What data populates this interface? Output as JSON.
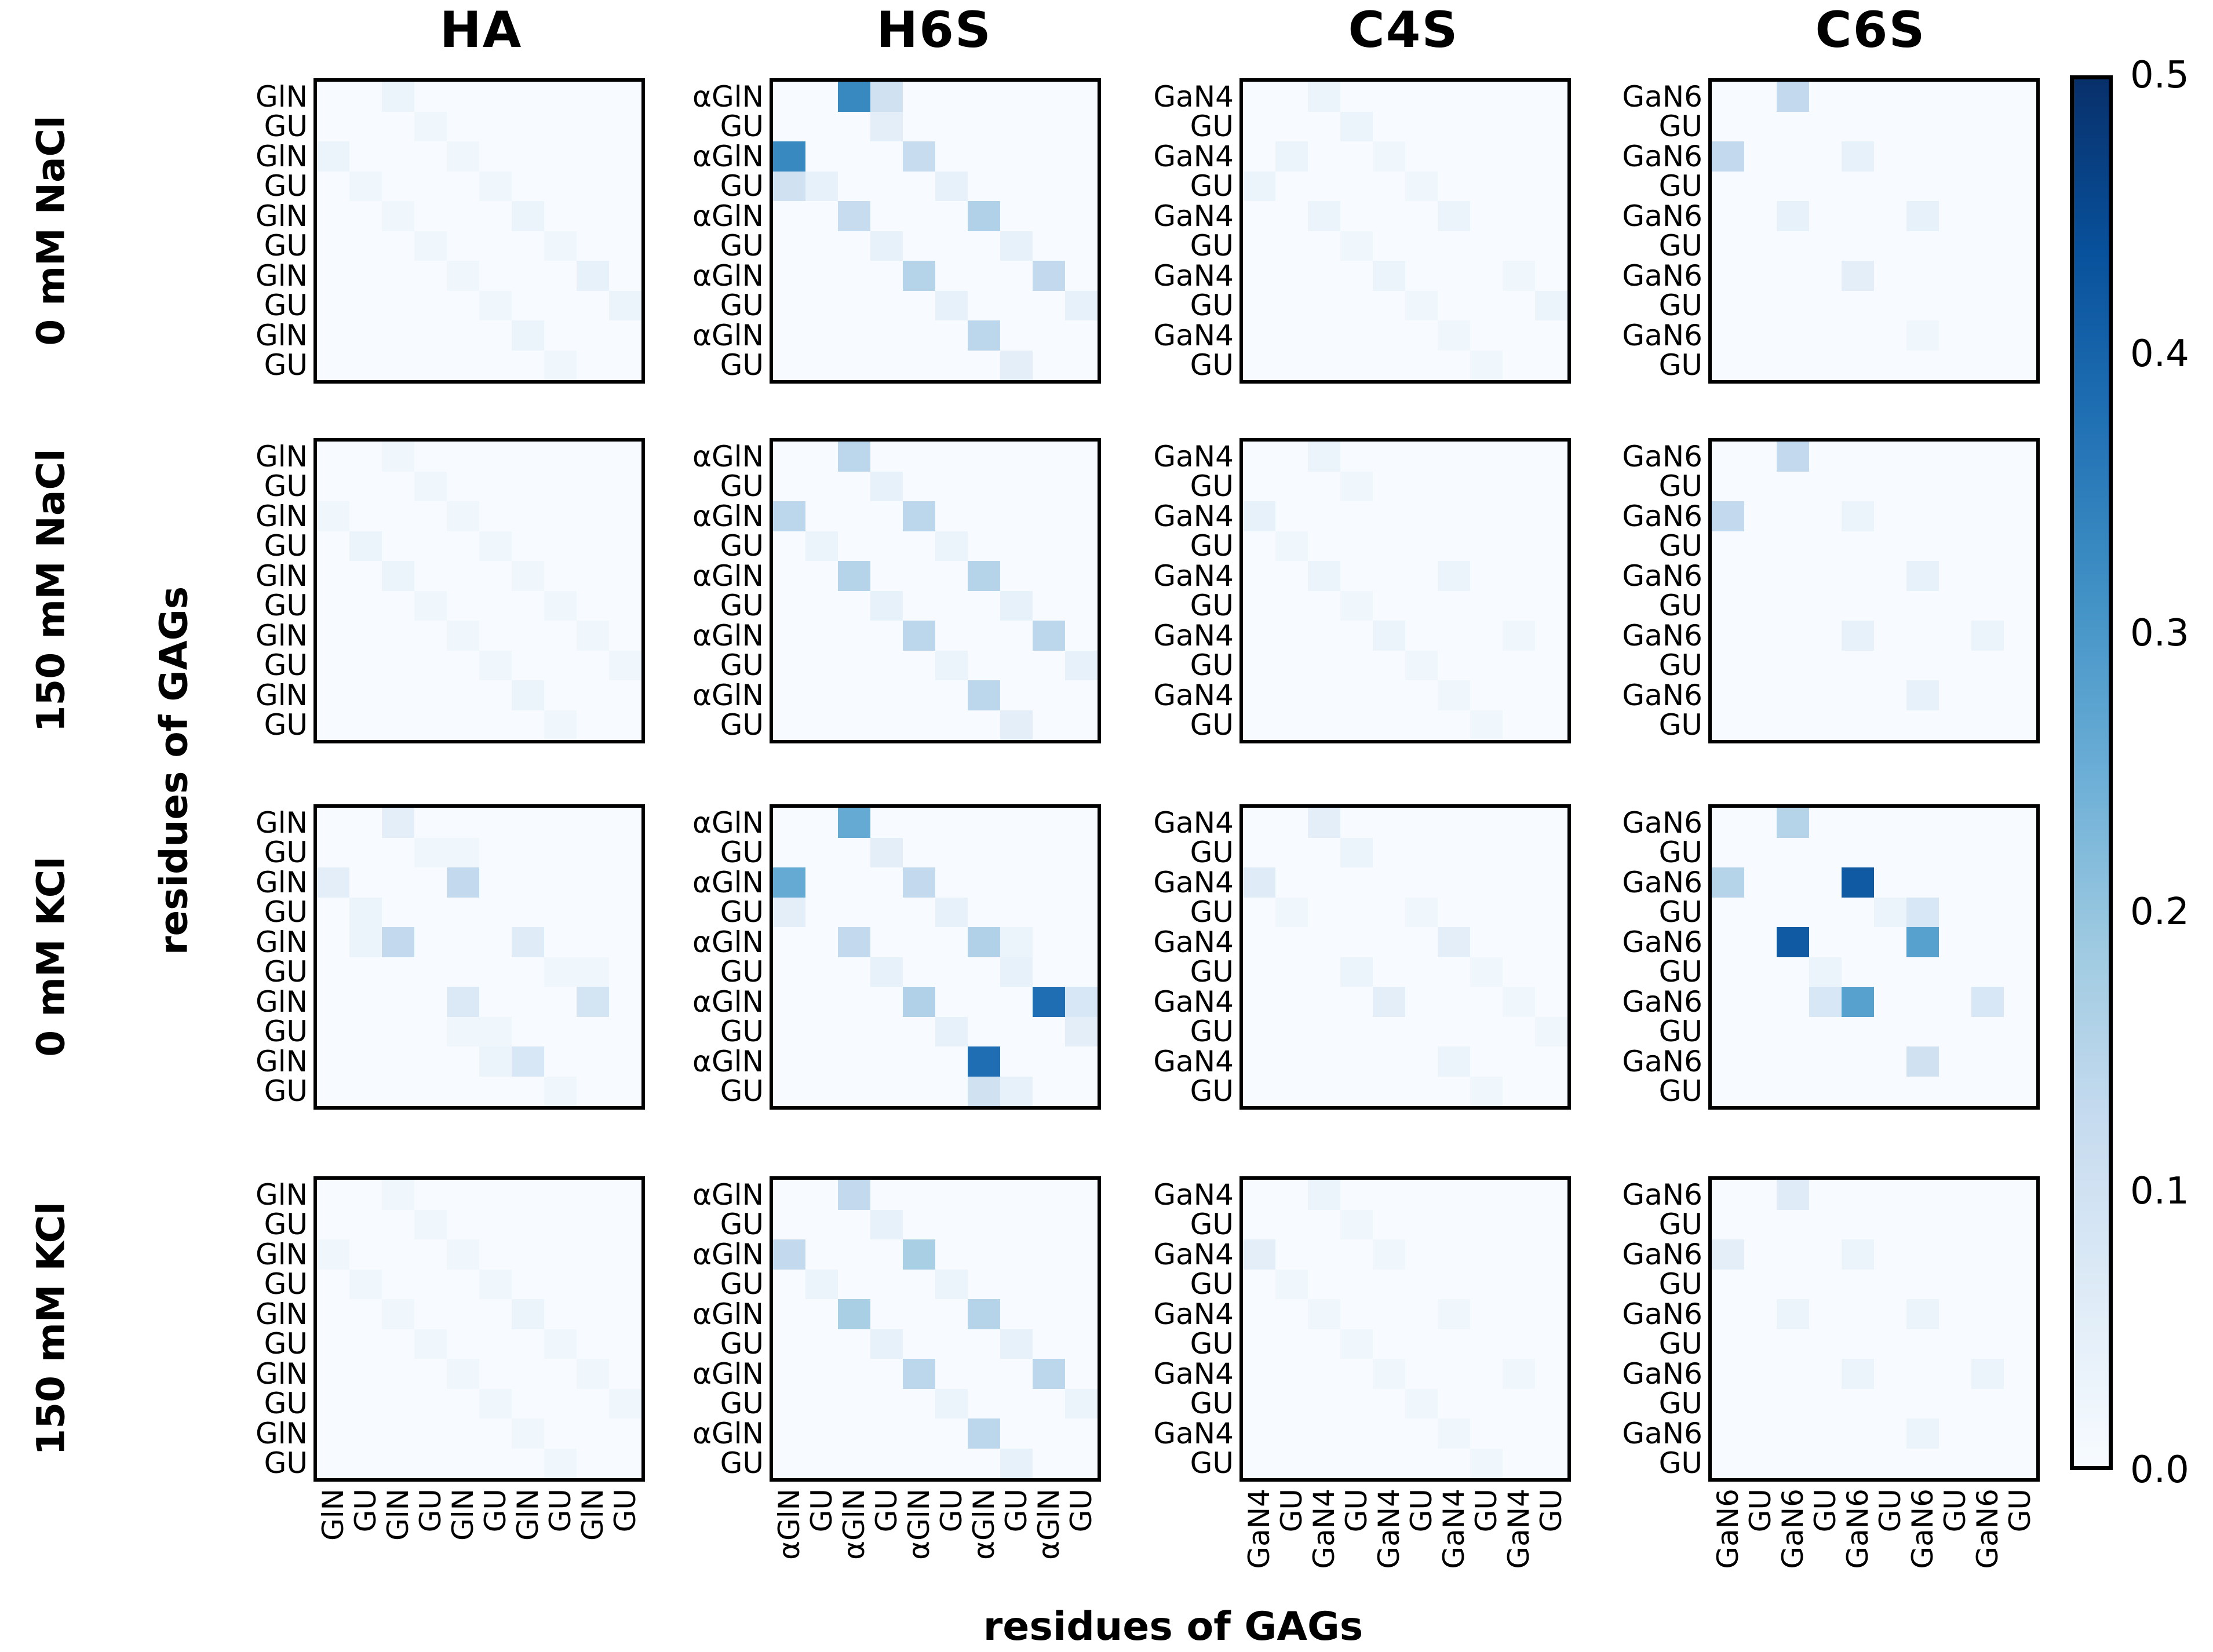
{
  "figure": {
    "column_titles": [
      "HA",
      "H6S",
      "C4S",
      "C6S"
    ],
    "row_labels": [
      "0 mM NaCl",
      "150 mM NaCl",
      "0 mM KCl",
      "150 mM KCl"
    ],
    "y_axis_label": "residues of GAGs",
    "x_axis_label": "residues of GAGs"
  },
  "colorbar": {
    "ticks": [
      "0.5",
      "0.4",
      "0.3",
      "0.2",
      "0.1",
      "0.0"
    ],
    "vmin": 0.0,
    "vmax": 0.5,
    "colormap": "Blues",
    "gradient_stops": [
      "#f7fbff",
      "#deebf7",
      "#c6dbef",
      "#9ecae1",
      "#6baed6",
      "#4292c6",
      "#2171b5",
      "#08519c",
      "#08306b"
    ],
    "border_color": "#000000"
  },
  "residue_labels": {
    "HA": [
      "GlN",
      "GU",
      "GlN",
      "GU",
      "GlN",
      "GU",
      "GlN",
      "GU",
      "GlN",
      "GU"
    ],
    "H6S": [
      "αGlN",
      "GU",
      "αGlN",
      "GU",
      "αGlN",
      "GU",
      "αGlN",
      "GU",
      "αGlN",
      "GU"
    ],
    "C4S": [
      "GaN4",
      "GU",
      "GaN4",
      "GU",
      "GaN4",
      "GU",
      "GaN4",
      "GU",
      "GaN4",
      "GU"
    ],
    "C6S": [
      "GaN6",
      "GU",
      "GaN6",
      "GU",
      "GaN6",
      "GU",
      "GaN6",
      "GU",
      "GaN6",
      "GU"
    ]
  },
  "chart_data": [
    {
      "type": "heatmap",
      "gag": "HA",
      "condition": "0 mM NaCl",
      "grid_row": 0,
      "grid_col": 0,
      "size": [
        10,
        10
      ],
      "vmin": 0.0,
      "vmax": 0.5,
      "cells_sparse": [
        [
          0,
          2,
          0.03
        ],
        [
          1,
          3,
          0.02
        ],
        [
          2,
          0,
          0.03
        ],
        [
          2,
          4,
          0.02
        ],
        [
          3,
          1,
          0.02
        ],
        [
          3,
          5,
          0.02
        ],
        [
          4,
          2,
          0.02
        ],
        [
          4,
          6,
          0.03
        ],
        [
          5,
          3,
          0.02
        ],
        [
          5,
          7,
          0.02
        ],
        [
          6,
          4,
          0.02
        ],
        [
          6,
          8,
          0.04
        ],
        [
          7,
          5,
          0.02
        ],
        [
          7,
          9,
          0.03
        ],
        [
          8,
          6,
          0.03
        ],
        [
          9,
          7,
          0.02
        ]
      ]
    },
    {
      "type": "heatmap",
      "gag": "H6S",
      "condition": "0 mM NaCl",
      "grid_row": 0,
      "grid_col": 1,
      "size": [
        10,
        10
      ],
      "vmin": 0.0,
      "vmax": 0.5,
      "cells_sparse": [
        [
          0,
          2,
          0.33
        ],
        [
          0,
          3,
          0.1
        ],
        [
          1,
          3,
          0.05
        ],
        [
          2,
          0,
          0.33
        ],
        [
          2,
          4,
          0.12
        ],
        [
          3,
          0,
          0.1
        ],
        [
          3,
          1,
          0.04
        ],
        [
          3,
          5,
          0.04
        ],
        [
          4,
          2,
          0.12
        ],
        [
          4,
          6,
          0.16
        ],
        [
          5,
          3,
          0.04
        ],
        [
          5,
          7,
          0.04
        ],
        [
          6,
          4,
          0.15
        ],
        [
          6,
          8,
          0.13
        ],
        [
          7,
          5,
          0.04
        ],
        [
          7,
          9,
          0.04
        ],
        [
          8,
          6,
          0.14
        ],
        [
          9,
          7,
          0.05
        ]
      ]
    },
    {
      "type": "heatmap",
      "gag": "C4S",
      "condition": "0 mM NaCl",
      "grid_row": 0,
      "grid_col": 2,
      "size": [
        10,
        10
      ],
      "vmin": 0.0,
      "vmax": 0.5,
      "cells_sparse": [
        [
          0,
          2,
          0.03
        ],
        [
          1,
          3,
          0.03
        ],
        [
          2,
          1,
          0.03
        ],
        [
          2,
          4,
          0.02
        ],
        [
          3,
          0,
          0.03
        ],
        [
          3,
          5,
          0.02
        ],
        [
          4,
          2,
          0.03
        ],
        [
          4,
          6,
          0.03
        ],
        [
          5,
          3,
          0.02
        ],
        [
          6,
          4,
          0.03
        ],
        [
          6,
          8,
          0.02
        ],
        [
          7,
          5,
          0.02
        ],
        [
          7,
          9,
          0.03
        ],
        [
          8,
          6,
          0.02
        ],
        [
          9,
          7,
          0.02
        ]
      ]
    },
    {
      "type": "heatmap",
      "gag": "C6S",
      "condition": "0 mM NaCl",
      "grid_row": 0,
      "grid_col": 3,
      "size": [
        10,
        10
      ],
      "vmin": 0.0,
      "vmax": 0.5,
      "cells_sparse": [
        [
          0,
          2,
          0.13
        ],
        [
          2,
          0,
          0.13
        ],
        [
          2,
          4,
          0.04
        ],
        [
          4,
          2,
          0.04
        ],
        [
          4,
          6,
          0.04
        ],
        [
          6,
          4,
          0.05
        ],
        [
          8,
          6,
          0.02
        ]
      ]
    },
    {
      "type": "heatmap",
      "gag": "HA",
      "condition": "150 mM NaCl",
      "grid_row": 1,
      "grid_col": 0,
      "size": [
        10,
        10
      ],
      "vmin": 0.0,
      "vmax": 0.5,
      "cells_sparse": [
        [
          0,
          2,
          0.02
        ],
        [
          1,
          3,
          0.02
        ],
        [
          2,
          0,
          0.02
        ],
        [
          2,
          4,
          0.02
        ],
        [
          3,
          1,
          0.03
        ],
        [
          3,
          5,
          0.02
        ],
        [
          4,
          2,
          0.03
        ],
        [
          4,
          6,
          0.02
        ],
        [
          5,
          3,
          0.02
        ],
        [
          5,
          7,
          0.02
        ],
        [
          6,
          4,
          0.02
        ],
        [
          6,
          8,
          0.02
        ],
        [
          7,
          5,
          0.02
        ],
        [
          7,
          9,
          0.02
        ],
        [
          8,
          6,
          0.03
        ],
        [
          9,
          7,
          0.02
        ]
      ]
    },
    {
      "type": "heatmap",
      "gag": "H6S",
      "condition": "150 mM NaCl",
      "grid_row": 1,
      "grid_col": 1,
      "size": [
        10,
        10
      ],
      "vmin": 0.0,
      "vmax": 0.5,
      "cells_sparse": [
        [
          0,
          2,
          0.14
        ],
        [
          1,
          3,
          0.04
        ],
        [
          2,
          0,
          0.14
        ],
        [
          2,
          4,
          0.14
        ],
        [
          3,
          1,
          0.03
        ],
        [
          3,
          5,
          0.03
        ],
        [
          4,
          2,
          0.15
        ],
        [
          4,
          6,
          0.15
        ],
        [
          5,
          3,
          0.04
        ],
        [
          5,
          7,
          0.04
        ],
        [
          6,
          4,
          0.14
        ],
        [
          6,
          8,
          0.14
        ],
        [
          7,
          5,
          0.03
        ],
        [
          7,
          9,
          0.04
        ],
        [
          8,
          6,
          0.14
        ],
        [
          9,
          7,
          0.05
        ]
      ]
    },
    {
      "type": "heatmap",
      "gag": "C4S",
      "condition": "150 mM NaCl",
      "grid_row": 1,
      "grid_col": 2,
      "size": [
        10,
        10
      ],
      "vmin": 0.0,
      "vmax": 0.5,
      "cells_sparse": [
        [
          0,
          2,
          0.03
        ],
        [
          1,
          3,
          0.02
        ],
        [
          2,
          0,
          0.04
        ],
        [
          3,
          1,
          0.02
        ],
        [
          4,
          2,
          0.03
        ],
        [
          4,
          6,
          0.03
        ],
        [
          5,
          3,
          0.02
        ],
        [
          6,
          4,
          0.03
        ],
        [
          6,
          8,
          0.02
        ],
        [
          7,
          5,
          0.02
        ],
        [
          8,
          6,
          0.02
        ],
        [
          9,
          7,
          0.02
        ]
      ]
    },
    {
      "type": "heatmap",
      "gag": "C6S",
      "condition": "150 mM NaCl",
      "grid_row": 1,
      "grid_col": 3,
      "size": [
        10,
        10
      ],
      "vmin": 0.0,
      "vmax": 0.5,
      "cells_sparse": [
        [
          0,
          2,
          0.13
        ],
        [
          2,
          0,
          0.13
        ],
        [
          2,
          4,
          0.03
        ],
        [
          4,
          6,
          0.04
        ],
        [
          6,
          4,
          0.04
        ],
        [
          6,
          8,
          0.03
        ],
        [
          8,
          6,
          0.04
        ]
      ]
    },
    {
      "type": "heatmap",
      "gag": "HA",
      "condition": "0 mM KCl",
      "grid_row": 2,
      "grid_col": 0,
      "size": [
        10,
        10
      ],
      "vmin": 0.0,
      "vmax": 0.5,
      "cells_sparse": [
        [
          0,
          2,
          0.05
        ],
        [
          1,
          3,
          0.02
        ],
        [
          1,
          4,
          0.02
        ],
        [
          2,
          0,
          0.05
        ],
        [
          2,
          4,
          0.13
        ],
        [
          3,
          1,
          0.03
        ],
        [
          4,
          1,
          0.03
        ],
        [
          4,
          2,
          0.13
        ],
        [
          4,
          6,
          0.06
        ],
        [
          5,
          7,
          0.02
        ],
        [
          5,
          8,
          0.02
        ],
        [
          6,
          4,
          0.07
        ],
        [
          6,
          8,
          0.09
        ],
        [
          7,
          4,
          0.02
        ],
        [
          7,
          5,
          0.02
        ],
        [
          8,
          5,
          0.03
        ],
        [
          8,
          6,
          0.08
        ],
        [
          9,
          7,
          0.02
        ]
      ]
    },
    {
      "type": "heatmap",
      "gag": "H6S",
      "condition": "0 mM KCl",
      "grid_row": 2,
      "grid_col": 1,
      "size": [
        10,
        10
      ],
      "vmin": 0.0,
      "vmax": 0.5,
      "cells_sparse": [
        [
          0,
          2,
          0.26
        ],
        [
          1,
          3,
          0.05
        ],
        [
          2,
          0,
          0.26
        ],
        [
          2,
          4,
          0.13
        ],
        [
          3,
          0,
          0.05
        ],
        [
          3,
          5,
          0.04
        ],
        [
          4,
          2,
          0.13
        ],
        [
          4,
          6,
          0.16
        ],
        [
          4,
          7,
          0.03
        ],
        [
          5,
          3,
          0.04
        ],
        [
          5,
          7,
          0.04
        ],
        [
          6,
          4,
          0.16
        ],
        [
          6,
          8,
          0.38
        ],
        [
          6,
          9,
          0.08
        ],
        [
          7,
          5,
          0.04
        ],
        [
          7,
          9,
          0.05
        ],
        [
          8,
          6,
          0.38
        ],
        [
          9,
          6,
          0.1
        ],
        [
          9,
          7,
          0.04
        ]
      ]
    },
    {
      "type": "heatmap",
      "gag": "C4S",
      "condition": "0 mM KCl",
      "grid_row": 2,
      "grid_col": 2,
      "size": [
        10,
        10
      ],
      "vmin": 0.0,
      "vmax": 0.5,
      "cells_sparse": [
        [
          0,
          2,
          0.05
        ],
        [
          1,
          3,
          0.03
        ],
        [
          2,
          0,
          0.06
        ],
        [
          3,
          1,
          0.02
        ],
        [
          3,
          5,
          0.02
        ],
        [
          4,
          6,
          0.05
        ],
        [
          5,
          3,
          0.03
        ],
        [
          5,
          7,
          0.02
        ],
        [
          6,
          4,
          0.05
        ],
        [
          6,
          8,
          0.02
        ],
        [
          7,
          9,
          0.02
        ],
        [
          8,
          6,
          0.03
        ],
        [
          9,
          7,
          0.02
        ]
      ]
    },
    {
      "type": "heatmap",
      "gag": "C6S",
      "condition": "0 mM KCl",
      "grid_row": 2,
      "grid_col": 3,
      "size": [
        10,
        10
      ],
      "vmin": 0.0,
      "vmax": 0.5,
      "cells_sparse": [
        [
          0,
          2,
          0.15
        ],
        [
          2,
          0,
          0.15
        ],
        [
          2,
          4,
          0.42
        ],
        [
          3,
          5,
          0.03
        ],
        [
          3,
          6,
          0.08
        ],
        [
          4,
          2,
          0.42
        ],
        [
          4,
          6,
          0.28
        ],
        [
          5,
          3,
          0.03
        ],
        [
          6,
          3,
          0.08
        ],
        [
          6,
          4,
          0.28
        ],
        [
          6,
          8,
          0.08
        ],
        [
          8,
          6,
          0.1
        ]
      ]
    },
    {
      "type": "heatmap",
      "gag": "HA",
      "condition": "150 mM KCl",
      "grid_row": 3,
      "grid_col": 0,
      "size": [
        10,
        10
      ],
      "vmin": 0.0,
      "vmax": 0.5,
      "cells_sparse": [
        [
          0,
          2,
          0.02
        ],
        [
          1,
          3,
          0.02
        ],
        [
          2,
          0,
          0.02
        ],
        [
          2,
          4,
          0.02
        ],
        [
          3,
          1,
          0.02
        ],
        [
          3,
          5,
          0.02
        ],
        [
          4,
          2,
          0.02
        ],
        [
          4,
          6,
          0.03
        ],
        [
          5,
          3,
          0.02
        ],
        [
          5,
          7,
          0.02
        ],
        [
          6,
          4,
          0.02
        ],
        [
          6,
          8,
          0.02
        ],
        [
          7,
          5,
          0.02
        ],
        [
          7,
          9,
          0.02
        ],
        [
          8,
          6,
          0.02
        ],
        [
          9,
          7,
          0.02
        ]
      ]
    },
    {
      "type": "heatmap",
      "gag": "H6S",
      "condition": "150 mM KCl",
      "grid_row": 3,
      "grid_col": 1,
      "size": [
        10,
        10
      ],
      "vmin": 0.0,
      "vmax": 0.5,
      "cells_sparse": [
        [
          0,
          2,
          0.13
        ],
        [
          1,
          3,
          0.04
        ],
        [
          2,
          0,
          0.13
        ],
        [
          2,
          4,
          0.17
        ],
        [
          3,
          1,
          0.03
        ],
        [
          3,
          5,
          0.03
        ],
        [
          4,
          2,
          0.17
        ],
        [
          4,
          6,
          0.15
        ],
        [
          5,
          3,
          0.04
        ],
        [
          5,
          7,
          0.04
        ],
        [
          6,
          4,
          0.14
        ],
        [
          6,
          8,
          0.14
        ],
        [
          7,
          5,
          0.03
        ],
        [
          7,
          9,
          0.03
        ],
        [
          8,
          6,
          0.14
        ],
        [
          9,
          7,
          0.04
        ]
      ]
    },
    {
      "type": "heatmap",
      "gag": "C4S",
      "condition": "150 mM KCl",
      "grid_row": 3,
      "grid_col": 2,
      "size": [
        10,
        10
      ],
      "vmin": 0.0,
      "vmax": 0.5,
      "cells_sparse": [
        [
          0,
          2,
          0.03
        ],
        [
          1,
          3,
          0.02
        ],
        [
          2,
          0,
          0.05
        ],
        [
          2,
          4,
          0.02
        ],
        [
          3,
          1,
          0.02
        ],
        [
          4,
          2,
          0.02
        ],
        [
          4,
          6,
          0.02
        ],
        [
          5,
          3,
          0.02
        ],
        [
          6,
          4,
          0.02
        ],
        [
          6,
          8,
          0.02
        ],
        [
          7,
          5,
          0.02
        ],
        [
          8,
          6,
          0.02
        ],
        [
          9,
          7,
          0.02
        ]
      ]
    },
    {
      "type": "heatmap",
      "gag": "C6S",
      "condition": "150 mM KCl",
      "grid_row": 3,
      "grid_col": 3,
      "size": [
        10,
        10
      ],
      "vmin": 0.0,
      "vmax": 0.5,
      "cells_sparse": [
        [
          0,
          2,
          0.06
        ],
        [
          2,
          0,
          0.05
        ],
        [
          2,
          4,
          0.03
        ],
        [
          4,
          2,
          0.03
        ],
        [
          4,
          6,
          0.03
        ],
        [
          6,
          4,
          0.03
        ],
        [
          6,
          8,
          0.03
        ],
        [
          8,
          6,
          0.03
        ]
      ]
    }
  ]
}
